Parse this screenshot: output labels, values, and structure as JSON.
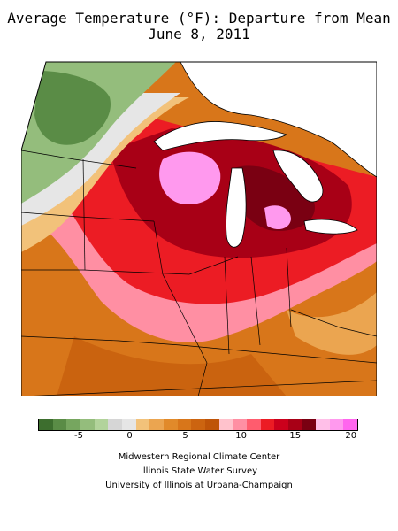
{
  "title": {
    "line1": "Average Temperature (°F): Departure from Mean",
    "line2": "June 8, 2011"
  },
  "colors": {
    "water": "#ffffff",
    "outline": "#000000"
  },
  "legend": {
    "swatches": [
      "#3d6e2e",
      "#5a8c46",
      "#76a65f",
      "#94bd7c",
      "#b2d39b",
      "#d6d6d6",
      "#e6e6e6",
      "#f2c27a",
      "#eba550",
      "#e18a2a",
      "#d8761a",
      "#cc6410",
      "#bf5408",
      "#ffc2cc",
      "#ff8fa3",
      "#ff5c6e",
      "#ec1c24",
      "#cc001c",
      "#a80016",
      "#7a0012",
      "#ffbfe8",
      "#ff99ee",
      "#ff66ee"
    ],
    "tick_labels": [
      "-5",
      "0",
      "5",
      "10",
      "15",
      "20"
    ]
  },
  "credits": [
    "Midwestern Regional Climate Center",
    "Illinois State Water Survey",
    "University of Illinois at Urbana-Champaign"
  ]
}
